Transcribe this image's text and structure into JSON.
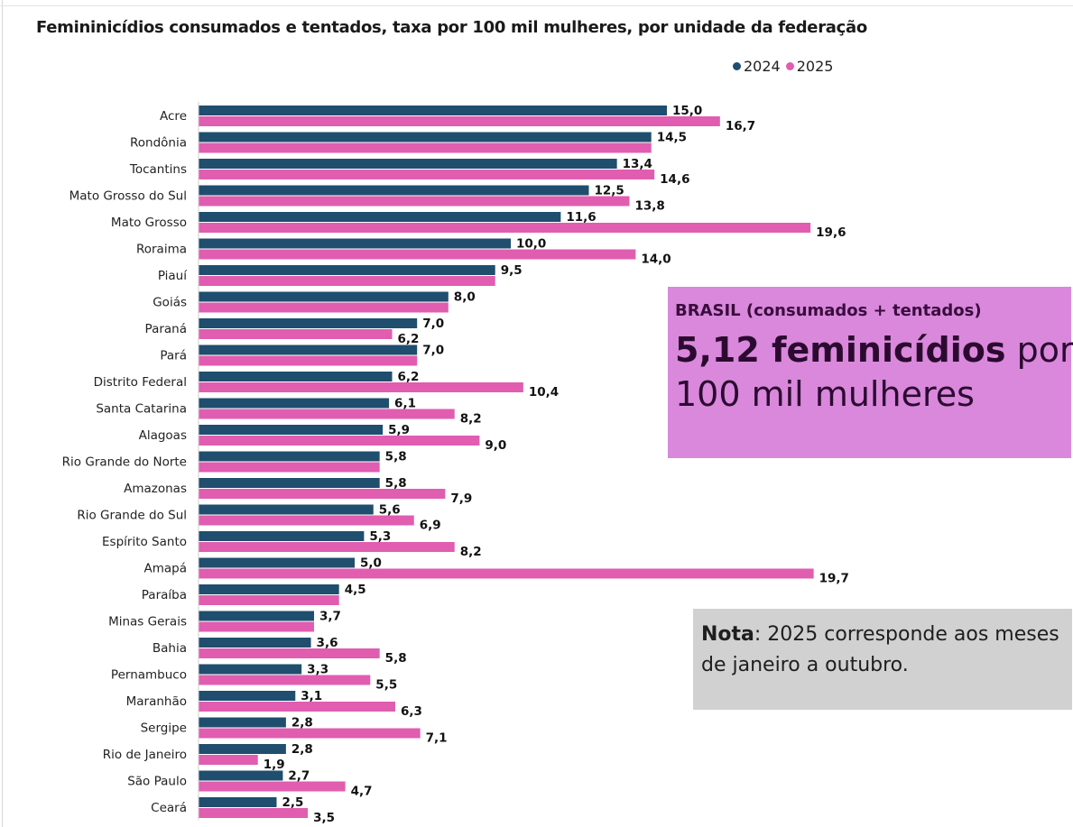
{
  "chart_data": {
    "type": "bar",
    "orientation": "horizontal",
    "title": "Femininicídios consumados e tentados, taxa por 100 mil mulheres, por unidade da federação",
    "legend_position": "top-right",
    "grid": false,
    "xlim": [
      0,
      21
    ],
    "categories": [
      "Acre",
      "Rondônia",
      "Tocantins",
      "Mato Grosso do Sul",
      "Mato Grosso",
      "Roraima",
      "Piauí",
      "Goiás",
      "Paraná",
      "Pará",
      "Distrito Federal",
      "Santa Catarina",
      "Alagoas",
      "Rio Grande do Norte",
      "Amazonas",
      "Rio Grande do Sul",
      "Espírito Santo",
      "Amapá",
      "Paraíba",
      "Minas Gerais",
      "Bahia",
      "Pernambuco",
      "Maranhão",
      "Sergipe",
      "Rio de Janeiro",
      "São Paulo",
      "Ceará"
    ],
    "series": [
      {
        "name": "2024",
        "color": "#1f4e6e",
        "values": [
          15.0,
          14.5,
          13.4,
          12.5,
          11.6,
          10.0,
          9.5,
          8.0,
          7.0,
          7.0,
          6.2,
          6.1,
          5.9,
          5.8,
          5.8,
          5.6,
          5.3,
          5.0,
          4.5,
          3.7,
          3.6,
          3.3,
          3.1,
          2.8,
          2.8,
          2.7,
          2.5
        ],
        "labels": [
          "15,0",
          "14,5",
          "13,4",
          "12,5",
          "11,6",
          "10,0",
          "9,5",
          "8,0",
          "7,0",
          "7,0",
          "6,2",
          "6,1",
          "5,9",
          "5,8",
          "5,8",
          "5,6",
          "5,3",
          "5,0",
          "4,5",
          "3,7",
          "3,6",
          "3,3",
          "3,1",
          "2,8",
          "2,8",
          "2,7",
          "2,5"
        ]
      },
      {
        "name": "2025",
        "color": "#e05db0",
        "values": [
          16.7,
          14.5,
          14.6,
          13.8,
          19.6,
          14.0,
          9.5,
          8.0,
          6.2,
          7.0,
          10.4,
          8.2,
          9.0,
          5.8,
          7.9,
          6.9,
          8.2,
          19.7,
          4.5,
          3.7,
          5.8,
          5.5,
          6.3,
          7.1,
          1.9,
          4.7,
          3.5
        ],
        "labels": [
          "16,7",
          "",
          "14,6",
          "13,8",
          "19,6",
          "14,0",
          "",
          "",
          "6,2",
          "",
          "10,4",
          "8,2",
          "9,0",
          "",
          "7,9",
          "6,9",
          "8,2",
          "19,7",
          "",
          "",
          "5,8",
          "5,5",
          "6,3",
          "7,1",
          "1,9",
          "4,7",
          "3,5"
        ]
      }
    ]
  },
  "brasil": {
    "heading": "BRASIL (consumados + tentados)",
    "value_bold": "5,12 feminicídios",
    "value_rest": " por",
    "line2": "100 mil mulheres"
  },
  "nota": {
    "label": "Nota",
    "text": ": 2025 corresponde aos meses de janeiro a outubro."
  }
}
